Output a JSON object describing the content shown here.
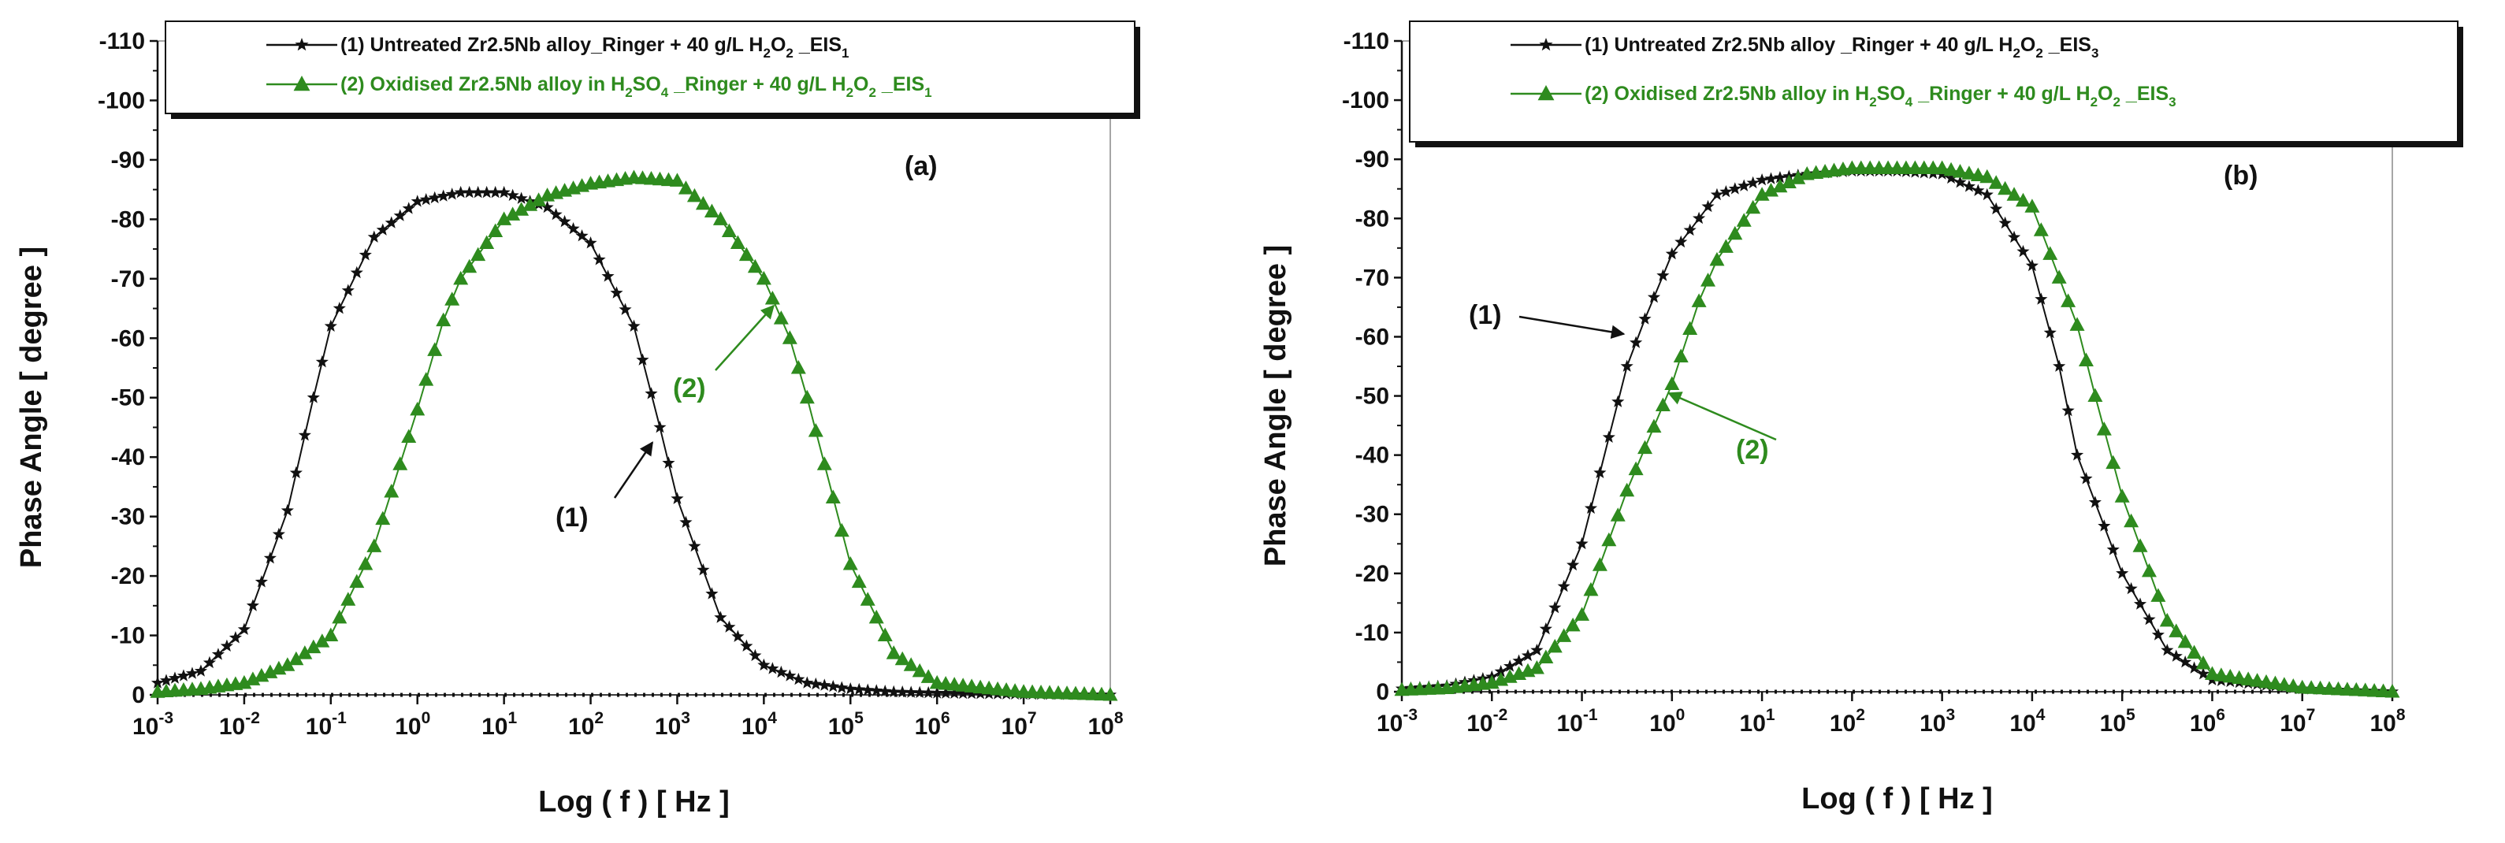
{
  "chart_data": [
    {
      "type": "line",
      "panel_label": "(a)",
      "xlabel": "Log ( f ) [ Hz ]",
      "ylabel": "Phase Angle [ degree ]",
      "x_scale": "log",
      "xlim_exp": [
        -3,
        8
      ],
      "ylim": [
        0,
        -110
      ],
      "x_tick_exponents": [
        "-3",
        "-2",
        "-1",
        "0",
        "1",
        "2",
        "3",
        "4",
        "5",
        "6",
        "7",
        "8"
      ],
      "y_ticks": [
        "0",
        "-10",
        "-20",
        "-30",
        "-40",
        "-50",
        "-60",
        "-70",
        "-80",
        "-90",
        "-100",
        "-110"
      ],
      "grid": false,
      "legend_position": "top",
      "series": [
        {
          "name": "(1) Untreated Zr2.5Nb alloy_Ringer + 40 g/L H2O2 _EIS1",
          "legend_parts": [
            "(1)  Untreated Zr2.5Nb alloy_Ringer + 40 g/L H",
            "2",
            "O",
            "2",
            " _EIS",
            "1"
          ],
          "color": "#111111",
          "marker": "star",
          "log_f": [
            -3,
            -2.5,
            -2,
            -1.5,
            -1.2,
            -1,
            -0.5,
            0,
            0.5,
            1,
            1.5,
            2,
            2.5,
            2.8,
            3,
            3.5,
            4,
            4.5,
            5,
            5.5,
            6,
            7,
            8
          ],
          "phase": [
            -2,
            -4,
            -11,
            -31,
            -50,
            -62,
            -77,
            -83,
            -84.5,
            -84.5,
            -82,
            -76,
            -62,
            -45,
            -33,
            -13,
            -5,
            -2,
            -1,
            -0.5,
            -0.3,
            -0.1,
            0
          ]
        },
        {
          "name": "(2) Oxidised Zr2.5Nb alloy in H2SO4 _Ringer + 40 g/L H2O2 _EIS1",
          "legend_parts": [
            "(2) Oxidised Zr2.5Nb alloy in H",
            "2",
            "SO",
            "4",
            " _Ringer + 40 g/L H",
            "2",
            "O",
            "2",
            " _EIS",
            "1"
          ],
          "color": "#2e8b1e",
          "marker": "triangle",
          "log_f": [
            -3,
            -2.5,
            -2,
            -1.5,
            -1,
            -0.5,
            0,
            0.3,
            0.5,
            1,
            1.5,
            2,
            2.5,
            3,
            3.5,
            4,
            4.3,
            4.5,
            5,
            5.5,
            6,
            7,
            8
          ],
          "phase": [
            -0.5,
            -1,
            -2,
            -5,
            -10,
            -25,
            -48,
            -63,
            -70,
            -80,
            -84,
            -86,
            -87,
            -86.5,
            -80,
            -70,
            -60,
            -50,
            -22,
            -7,
            -2,
            -0.5,
            0
          ]
        }
      ],
      "annotations": [
        {
          "text": "(1)",
          "color": "#111111"
        },
        {
          "text": "(2)",
          "color": "#2e8b1e"
        }
      ]
    },
    {
      "type": "line",
      "panel_label": "(b)",
      "xlabel": "Log ( f ) [ Hz ]",
      "ylabel": "Phase Angle [ degree ]",
      "x_scale": "log",
      "xlim_exp": [
        -3,
        8
      ],
      "ylim": [
        0,
        -110
      ],
      "x_tick_exponents": [
        "-3",
        "-2",
        "-1",
        "0",
        "1",
        "2",
        "3",
        "4",
        "5",
        "6",
        "7",
        "8"
      ],
      "y_ticks": [
        "0",
        "-10",
        "-20",
        "-30",
        "-40",
        "-50",
        "-60",
        "-70",
        "-80",
        "-90",
        "-100",
        "-110"
      ],
      "grid": false,
      "legend_position": "top",
      "series": [
        {
          "name": "(1) Untreated Zr2.5Nb alloy _Ringer + 40 g/L H2O2 _EIS3",
          "legend_parts": [
            "(1) Untreated Zr2.5Nb alloy _Ringer + 40 g/L H",
            "2",
            "O",
            "2",
            " _EIS",
            "3"
          ],
          "color": "#111111",
          "marker": "star",
          "log_f": [
            -3,
            -2.5,
            -2,
            -1.5,
            -1,
            -0.5,
            -0.3,
            0,
            0.5,
            1,
            1.5,
            2,
            2.5,
            3,
            3.5,
            4,
            4.3,
            4.5,
            5,
            5.5,
            6,
            7,
            8
          ],
          "phase": [
            -0.5,
            -1,
            -2.5,
            -7,
            -25,
            -55,
            -63,
            -74,
            -84,
            -86.5,
            -87.5,
            -88,
            -88,
            -87.5,
            -84,
            -72,
            -55,
            -40,
            -20,
            -7,
            -2,
            -0.5,
            0
          ]
        },
        {
          "name": "(2) Oxidised Zr2.5Nb alloy in H2SO4 _Ringer + 40 g/L H2O2 _EIS3",
          "legend_parts": [
            "(2) Oxidised Zr2.5Nb alloy in H",
            "2",
            "SO",
            "4",
            " _Ringer + 40 g/L H",
            "2",
            "O",
            "2",
            " _EIS",
            "3"
          ],
          "color": "#2e8b1e",
          "marker": "triangle",
          "log_f": [
            -3,
            -2.5,
            -2,
            -1.5,
            -1,
            -0.5,
            0,
            0.3,
            0.5,
            1,
            1.5,
            2,
            2.5,
            3,
            3.5,
            4,
            4.5,
            4.7,
            5,
            5.5,
            6,
            7,
            8
          ],
          "phase": [
            -0.3,
            -0.6,
            -1.5,
            -4,
            -13,
            -34,
            -52,
            -66,
            -73,
            -84,
            -87.5,
            -88.5,
            -88.5,
            -88.5,
            -87,
            -82,
            -62,
            -50,
            -33,
            -12,
            -3,
            -0.7,
            0
          ]
        }
      ],
      "annotations": [
        {
          "text": "(1)",
          "color": "#111111"
        },
        {
          "text": "(2)",
          "color": "#2e8b1e"
        }
      ]
    }
  ]
}
